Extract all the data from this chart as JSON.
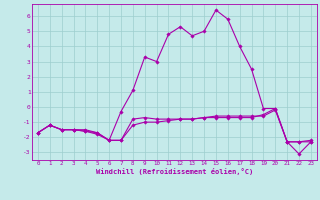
{
  "xlabel": "Windchill (Refroidissement éolien,°C)",
  "xlim": [
    -0.5,
    23.5
  ],
  "ylim": [
    -3.5,
    6.8
  ],
  "yticks": [
    -3,
    -2,
    -1,
    0,
    1,
    2,
    3,
    4,
    5,
    6
  ],
  "xticks": [
    0,
    1,
    2,
    3,
    4,
    5,
    6,
    7,
    8,
    9,
    10,
    11,
    12,
    13,
    14,
    15,
    16,
    17,
    18,
    19,
    20,
    21,
    22,
    23
  ],
  "background_color": "#c5eaea",
  "grid_color": "#9ecece",
  "line_color": "#aa00aa",
  "line1_x": [
    0,
    1,
    2,
    3,
    4,
    5,
    6,
    7,
    8,
    9,
    10,
    11,
    12,
    13,
    14,
    15,
    16,
    17,
    18,
    19,
    20,
    21,
    22,
    23
  ],
  "line1_y": [
    -1.7,
    -1.2,
    -1.5,
    -1.5,
    -1.5,
    -1.7,
    -2.2,
    -0.3,
    1.1,
    3.3,
    3.0,
    4.8,
    5.3,
    4.7,
    5.0,
    6.4,
    5.8,
    4.0,
    2.5,
    -0.1,
    -0.1,
    -2.3,
    -3.1,
    -2.3
  ],
  "line2_x": [
    0,
    1,
    2,
    3,
    4,
    5,
    6,
    7,
    8,
    9,
    10,
    11,
    12,
    13,
    14,
    15,
    16,
    17,
    18,
    19,
    20,
    21,
    22,
    23
  ],
  "line2_y": [
    -1.7,
    -1.2,
    -1.5,
    -1.5,
    -1.6,
    -1.7,
    -2.2,
    -2.2,
    -0.8,
    -0.7,
    -0.8,
    -0.8,
    -0.8,
    -0.8,
    -0.7,
    -0.6,
    -0.6,
    -0.6,
    -0.6,
    -0.6,
    -0.2,
    -2.3,
    -2.3,
    -2.3
  ],
  "line3_x": [
    0,
    1,
    2,
    3,
    4,
    5,
    6,
    7,
    8,
    9,
    10,
    11,
    12,
    13,
    14,
    15,
    16,
    17,
    18,
    19,
    20,
    21,
    22,
    23
  ],
  "line3_y": [
    -1.7,
    -1.2,
    -1.5,
    -1.5,
    -1.6,
    -1.8,
    -2.2,
    -2.2,
    -1.2,
    -1.0,
    -1.0,
    -0.9,
    -0.8,
    -0.8,
    -0.7,
    -0.7,
    -0.7,
    -0.7,
    -0.7,
    -0.5,
    -0.1,
    -2.3,
    -2.3,
    -2.2
  ]
}
